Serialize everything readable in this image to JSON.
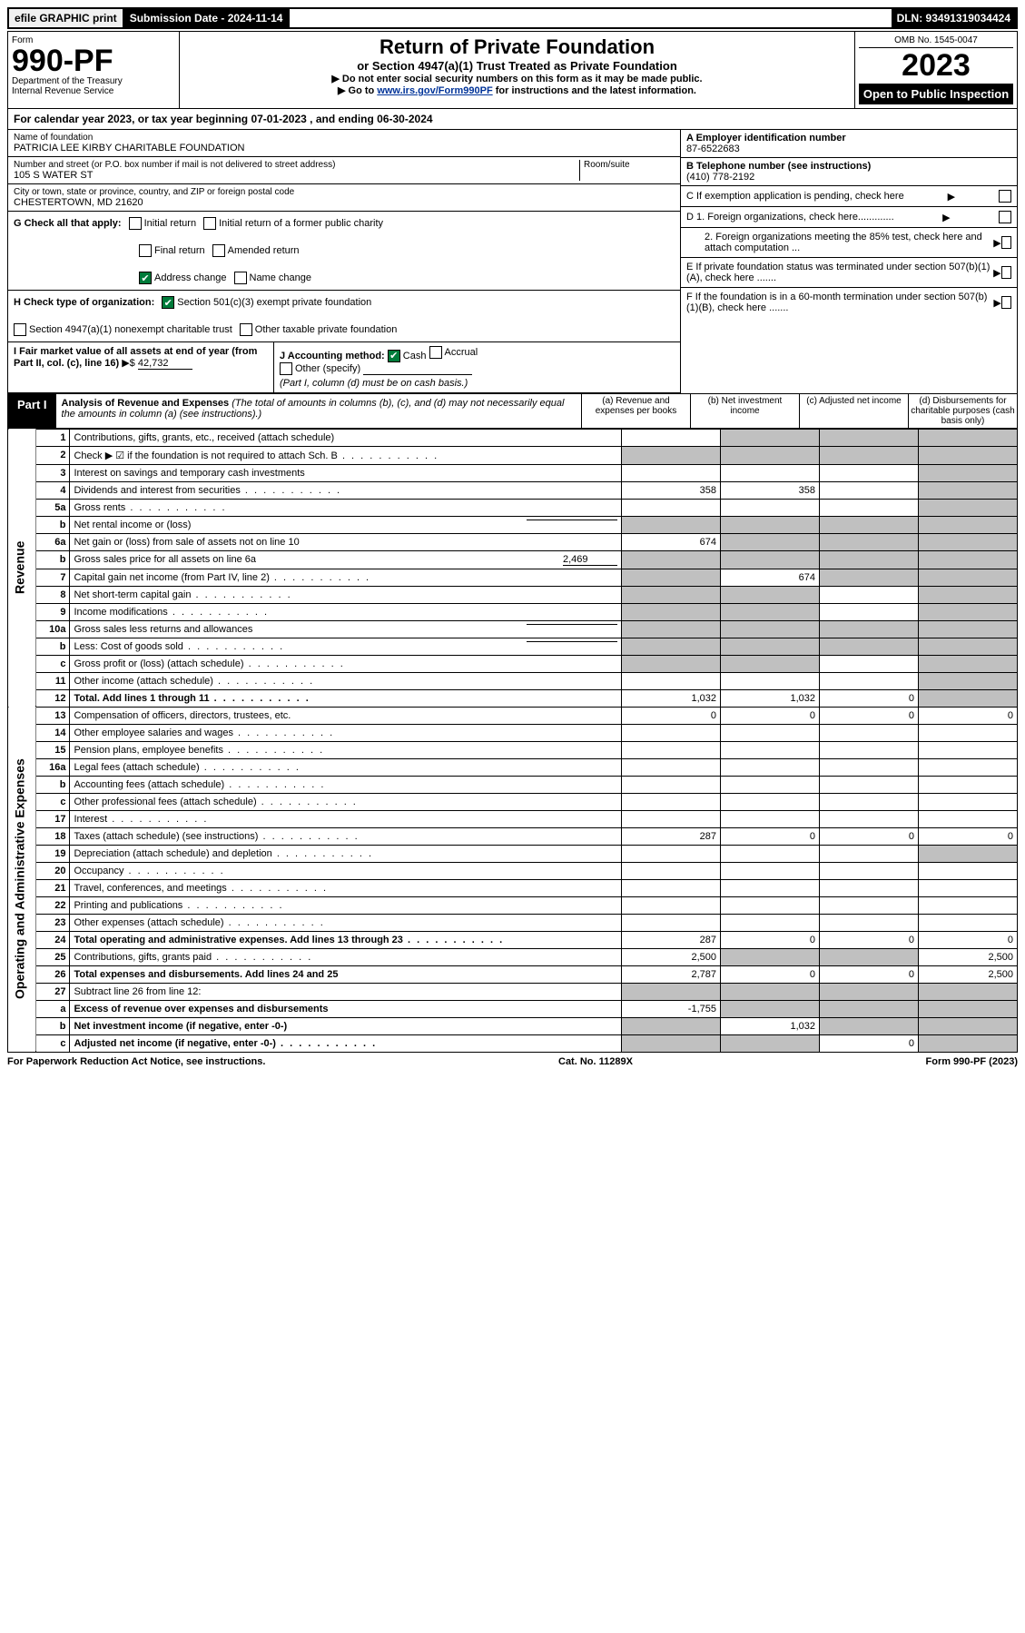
{
  "topbar": {
    "efile": "efile GRAPHIC print",
    "submission": "Submission Date - 2024-11-14",
    "dln": "DLN: 93491319034424"
  },
  "header": {
    "form_label": "Form",
    "form_no": "990-PF",
    "dept": "Department of the Treasury",
    "irs": "Internal Revenue Service",
    "title": "Return of Private Foundation",
    "subtitle": "or Section 4947(a)(1) Trust Treated as Private Foundation",
    "line1": "▶ Do not enter social security numbers on this form as it may be made public.",
    "line2_pre": "▶ Go to ",
    "line2_link": "www.irs.gov/Form990PF",
    "line2_post": " for instructions and the latest information.",
    "omb": "OMB No. 1545-0047",
    "year": "2023",
    "inspect": "Open to Public Inspection"
  },
  "calyear": "For calendar year 2023, or tax year beginning 07-01-2023             , and ending 06-30-2024",
  "info": {
    "name_label": "Name of foundation",
    "name": "PATRICIA LEE KIRBY CHARITABLE FOUNDATION",
    "addr_label": "Number and street (or P.O. box number if mail is not delivered to street address)",
    "room_label": "Room/suite",
    "addr": "105 S WATER ST",
    "city_label": "City or town, state or province, country, and ZIP or foreign postal code",
    "city": "CHESTERTOWN, MD  21620",
    "a_label": "A Employer identification number",
    "a_val": "87-6522683",
    "b_label": "B Telephone number (see instructions)",
    "b_val": "(410) 778-2192",
    "c_label": "C If exemption application is pending, check here",
    "d1": "D 1. Foreign organizations, check here.............",
    "d2": "2. Foreign organizations meeting the 85% test, check here and attach computation ...",
    "e": "E  If private foundation status was terminated under section 507(b)(1)(A), check here .......",
    "f": "F  If the foundation is in a 60-month termination under section 507(b)(1)(B), check here .......",
    "g_label": "G Check all that apply:",
    "g_initial": "Initial return",
    "g_initial_former": "Initial return of a former public charity",
    "g_final": "Final return",
    "g_amended": "Amended return",
    "g_address": "Address change",
    "g_name": "Name change",
    "h_label": "H Check type of organization:",
    "h_501c3": "Section 501(c)(3) exempt private foundation",
    "h_4947": "Section 4947(a)(1) nonexempt charitable trust",
    "h_other": "Other taxable private foundation",
    "i_label": "I Fair market value of all assets at end of year (from Part II, col. (c), line 16)",
    "i_val": "42,732",
    "j_label": "J Accounting method:",
    "j_cash": "Cash",
    "j_accrual": "Accrual",
    "j_other": "Other (specify)",
    "j_note": "(Part I, column (d) must be on cash basis.)"
  },
  "part1": {
    "tab": "Part I",
    "title": "Analysis of Revenue and Expenses",
    "note": "(The total of amounts in columns (b), (c), and (d) may not necessarily equal the amounts in column (a) (see instructions).)",
    "col_a": "(a)  Revenue and expenses per books",
    "col_b": "(b)  Net investment income",
    "col_c": "(c)  Adjusted net income",
    "col_d": "(d)  Disbursements for charitable purposes (cash basis only)"
  },
  "sides": {
    "revenue": "Revenue",
    "expenses": "Operating and Administrative Expenses"
  },
  "rows": [
    {
      "n": "1",
      "label": "Contributions, gifts, grants, etc., received (attach schedule)",
      "a": "",
      "b": "s",
      "c": "s",
      "d": "s"
    },
    {
      "n": "2",
      "label": "Check ▶ ☑ if the foundation is not required to attach Sch. B",
      "dots": true,
      "a": "s",
      "b": "s",
      "c": "s",
      "d": "s"
    },
    {
      "n": "3",
      "label": "Interest on savings and temporary cash investments",
      "a": "",
      "b": "",
      "c": "",
      "d": "s"
    },
    {
      "n": "4",
      "label": "Dividends and interest from securities",
      "dots": true,
      "a": "358",
      "b": "358",
      "c": "",
      "d": "s"
    },
    {
      "n": "5a",
      "label": "Gross rents",
      "dots": true,
      "a": "",
      "b": "",
      "c": "",
      "d": "s"
    },
    {
      "n": "b",
      "label": "Net rental income or (loss)",
      "inline": true,
      "a": "s",
      "b": "s",
      "c": "s",
      "d": "s"
    },
    {
      "n": "6a",
      "label": "Net gain or (loss) from sale of assets not on line 10",
      "a": "674",
      "b": "s",
      "c": "s",
      "d": "s"
    },
    {
      "n": "b",
      "label": "Gross sales price for all assets on line 6a",
      "inline_val": "2,469",
      "a": "s",
      "b": "s",
      "c": "s",
      "d": "s"
    },
    {
      "n": "7",
      "label": "Capital gain net income (from Part IV, line 2)",
      "dots": true,
      "a": "s",
      "b": "674",
      "c": "s",
      "d": "s"
    },
    {
      "n": "8",
      "label": "Net short-term capital gain",
      "dots": true,
      "a": "s",
      "b": "s",
      "c": "",
      "d": "s"
    },
    {
      "n": "9",
      "label": "Income modifications",
      "dots": true,
      "a": "s",
      "b": "s",
      "c": "",
      "d": "s"
    },
    {
      "n": "10a",
      "label": "Gross sales less returns and allowances",
      "inline": true,
      "a": "s",
      "b": "s",
      "c": "s",
      "d": "s"
    },
    {
      "n": "b",
      "label": "Less: Cost of goods sold",
      "dots": true,
      "inline": true,
      "a": "s",
      "b": "s",
      "c": "s",
      "d": "s"
    },
    {
      "n": "c",
      "label": "Gross profit or (loss) (attach schedule)",
      "dots": true,
      "a": "s",
      "b": "s",
      "c": "",
      "d": "s"
    },
    {
      "n": "11",
      "label": "Other income (attach schedule)",
      "dots": true,
      "a": "",
      "b": "",
      "c": "",
      "d": "s"
    },
    {
      "n": "12",
      "label": "Total. Add lines 1 through 11",
      "dots": true,
      "bold": true,
      "a": "1,032",
      "b": "1,032",
      "c": "0",
      "d": "s"
    },
    {
      "n": "13",
      "label": "Compensation of officers, directors, trustees, etc.",
      "a": "0",
      "b": "0",
      "c": "0",
      "d": "0"
    },
    {
      "n": "14",
      "label": "Other employee salaries and wages",
      "dots": true,
      "a": "",
      "b": "",
      "c": "",
      "d": ""
    },
    {
      "n": "15",
      "label": "Pension plans, employee benefits",
      "dots": true,
      "a": "",
      "b": "",
      "c": "",
      "d": ""
    },
    {
      "n": "16a",
      "label": "Legal fees (attach schedule)",
      "dots": true,
      "a": "",
      "b": "",
      "c": "",
      "d": ""
    },
    {
      "n": "b",
      "label": "Accounting fees (attach schedule)",
      "dots": true,
      "a": "",
      "b": "",
      "c": "",
      "d": ""
    },
    {
      "n": "c",
      "label": "Other professional fees (attach schedule)",
      "dots": true,
      "a": "",
      "b": "",
      "c": "",
      "d": ""
    },
    {
      "n": "17",
      "label": "Interest",
      "dots": true,
      "a": "",
      "b": "",
      "c": "",
      "d": ""
    },
    {
      "n": "18",
      "label": "Taxes (attach schedule) (see instructions)",
      "dots": true,
      "a": "287",
      "b": "0",
      "c": "0",
      "d": "0"
    },
    {
      "n": "19",
      "label": "Depreciation (attach schedule) and depletion",
      "dots": true,
      "a": "",
      "b": "",
      "c": "",
      "d": "s"
    },
    {
      "n": "20",
      "label": "Occupancy",
      "dots": true,
      "a": "",
      "b": "",
      "c": "",
      "d": ""
    },
    {
      "n": "21",
      "label": "Travel, conferences, and meetings",
      "dots": true,
      "a": "",
      "b": "",
      "c": "",
      "d": ""
    },
    {
      "n": "22",
      "label": "Printing and publications",
      "dots": true,
      "a": "",
      "b": "",
      "c": "",
      "d": ""
    },
    {
      "n": "23",
      "label": "Other expenses (attach schedule)",
      "dots": true,
      "a": "",
      "b": "",
      "c": "",
      "d": ""
    },
    {
      "n": "24",
      "label": "Total operating and administrative expenses. Add lines 13 through 23",
      "dots": true,
      "bold": true,
      "a": "287",
      "b": "0",
      "c": "0",
      "d": "0"
    },
    {
      "n": "25",
      "label": "Contributions, gifts, grants paid",
      "dots": true,
      "a": "2,500",
      "b": "s",
      "c": "s",
      "d": "2,500"
    },
    {
      "n": "26",
      "label": "Total expenses and disbursements. Add lines 24 and 25",
      "bold": true,
      "a": "2,787",
      "b": "0",
      "c": "0",
      "d": "2,500"
    },
    {
      "n": "27",
      "label": "Subtract line 26 from line 12:",
      "a": "s",
      "b": "s",
      "c": "s",
      "d": "s"
    },
    {
      "n": "a",
      "label": "Excess of revenue over expenses and disbursements",
      "bold": true,
      "a": "-1,755",
      "b": "s",
      "c": "s",
      "d": "s"
    },
    {
      "n": "b",
      "label": "Net investment income (if negative, enter -0-)",
      "bold": true,
      "a": "s",
      "b": "1,032",
      "c": "s",
      "d": "s"
    },
    {
      "n": "c",
      "label": "Adjusted net income (if negative, enter -0-)",
      "dots": true,
      "bold": true,
      "a": "s",
      "b": "s",
      "c": "0",
      "d": "s"
    }
  ],
  "footer": {
    "left": "For Paperwork Reduction Act Notice, see instructions.",
    "mid": "Cat. No. 11289X",
    "right": "Form 990-PF (2023)"
  },
  "colors": {
    "shade": "#c0c0c0",
    "check_green": "#007b3a",
    "link": "#003399"
  }
}
